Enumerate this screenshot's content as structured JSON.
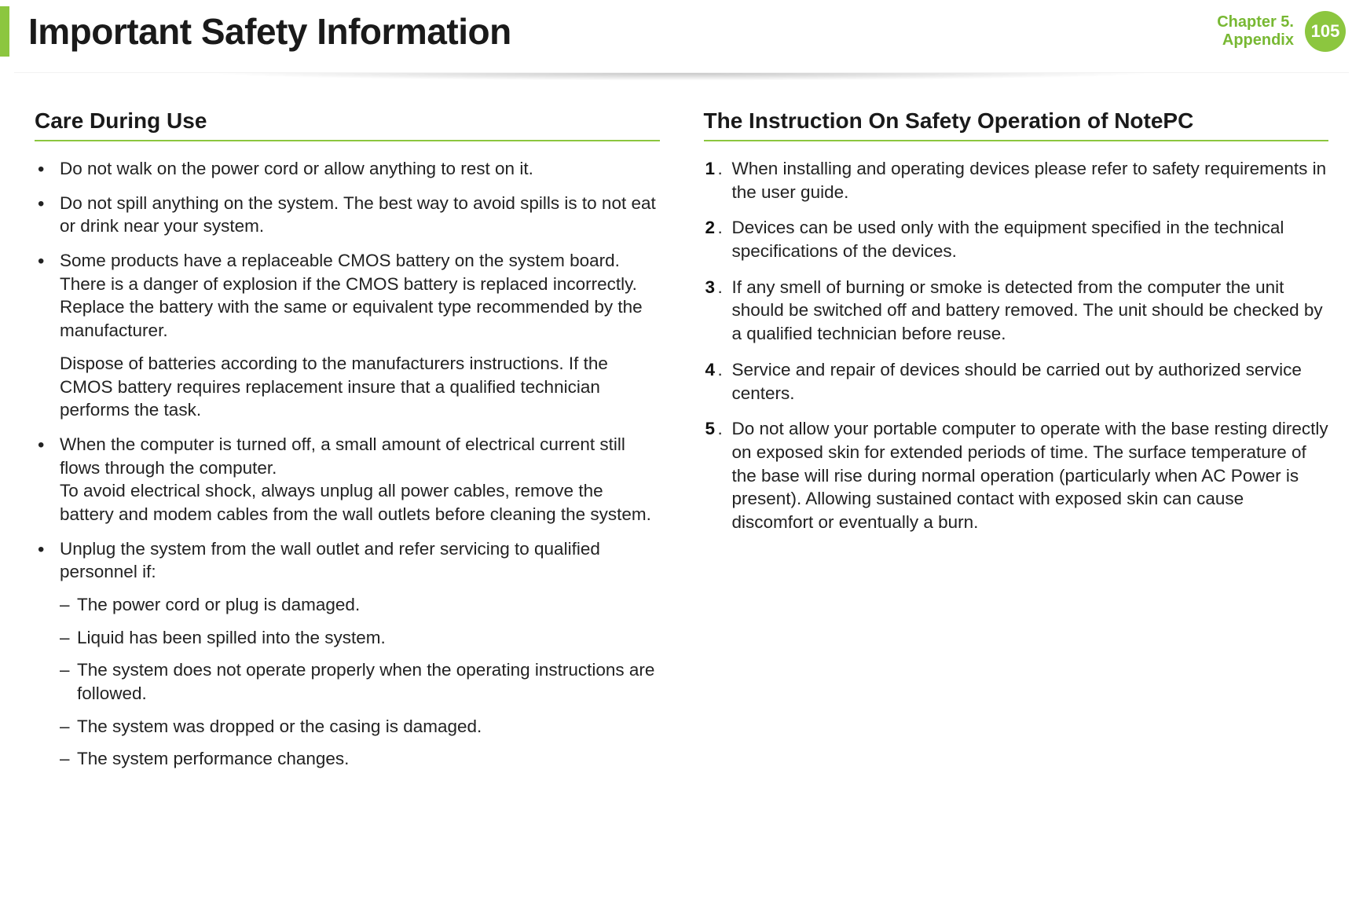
{
  "colors": {
    "accent": "#8cc63f",
    "accent_text": "#78b833",
    "body_text": "#222222",
    "heading_text": "#1a1a1a",
    "badge_bg": "#8cc63f",
    "badge_fg": "#ffffff",
    "background": "#ffffff"
  },
  "typography": {
    "page_title_size_pt": 34,
    "section_heading_size_pt": 21,
    "body_size_pt": 17,
    "chapter_size_pt": 15,
    "badge_size_pt": 16
  },
  "header": {
    "title": "Important Safety Information",
    "chapter_line1": "Chapter 5.",
    "chapter_line2": "Appendix",
    "page_number": "105"
  },
  "left": {
    "heading": "Care During Use",
    "items": [
      "Do not walk on the power cord or allow anything to rest on it.",
      "Do not spill anything on the system. The best way to avoid spills is to not eat or drink near your system.",
      "Some products have a replaceable CMOS battery on the system board. There is a danger of explosion if the CMOS battery is replaced incorrectly. Replace the battery with the same or equivalent type recommended by the manufacturer.",
      "When the computer is turned off, a small amount of electrical current still flows through the computer.",
      "Unplug the system from the wall outlet and refer servicing to qualified personnel if:"
    ],
    "item2_extra": "Dispose of batteries according to the manufacturers instructions. If the CMOS battery requires replacement insure that a qualified technician performs the task.",
    "item3_extra": "To avoid electrical shock, always unplug all power cables, remove the battery and modem cables from the wall outlets before cleaning the system.",
    "sub": [
      "The power cord or plug is damaged.",
      "Liquid has been spilled into the system.",
      "The system does not operate properly when the operating instructions are followed.",
      "The system was dropped or the casing is damaged.",
      "The system performance changes."
    ]
  },
  "right": {
    "heading": "The Instruction On Safety Operation of NotePC",
    "items": [
      "When installing and operating devices please refer to safety requirements in the user guide.",
      "Devices can be used only with the equipment specified in the technical specifications of the devices.",
      "If any smell of burning or smoke is detected from the computer the unit should be switched off and battery removed. The unit should be checked by a qualified technician before reuse.",
      "Service and repair of devices should be carried out by authorized service centers.",
      "Do not allow your portable computer to operate with the base resting directly on exposed skin for extended periods of time. The surface temperature of the base will rise during normal operation (particularly when AC Power is present). Allowing sustained contact with exposed skin can cause discomfort or eventually a burn."
    ]
  }
}
